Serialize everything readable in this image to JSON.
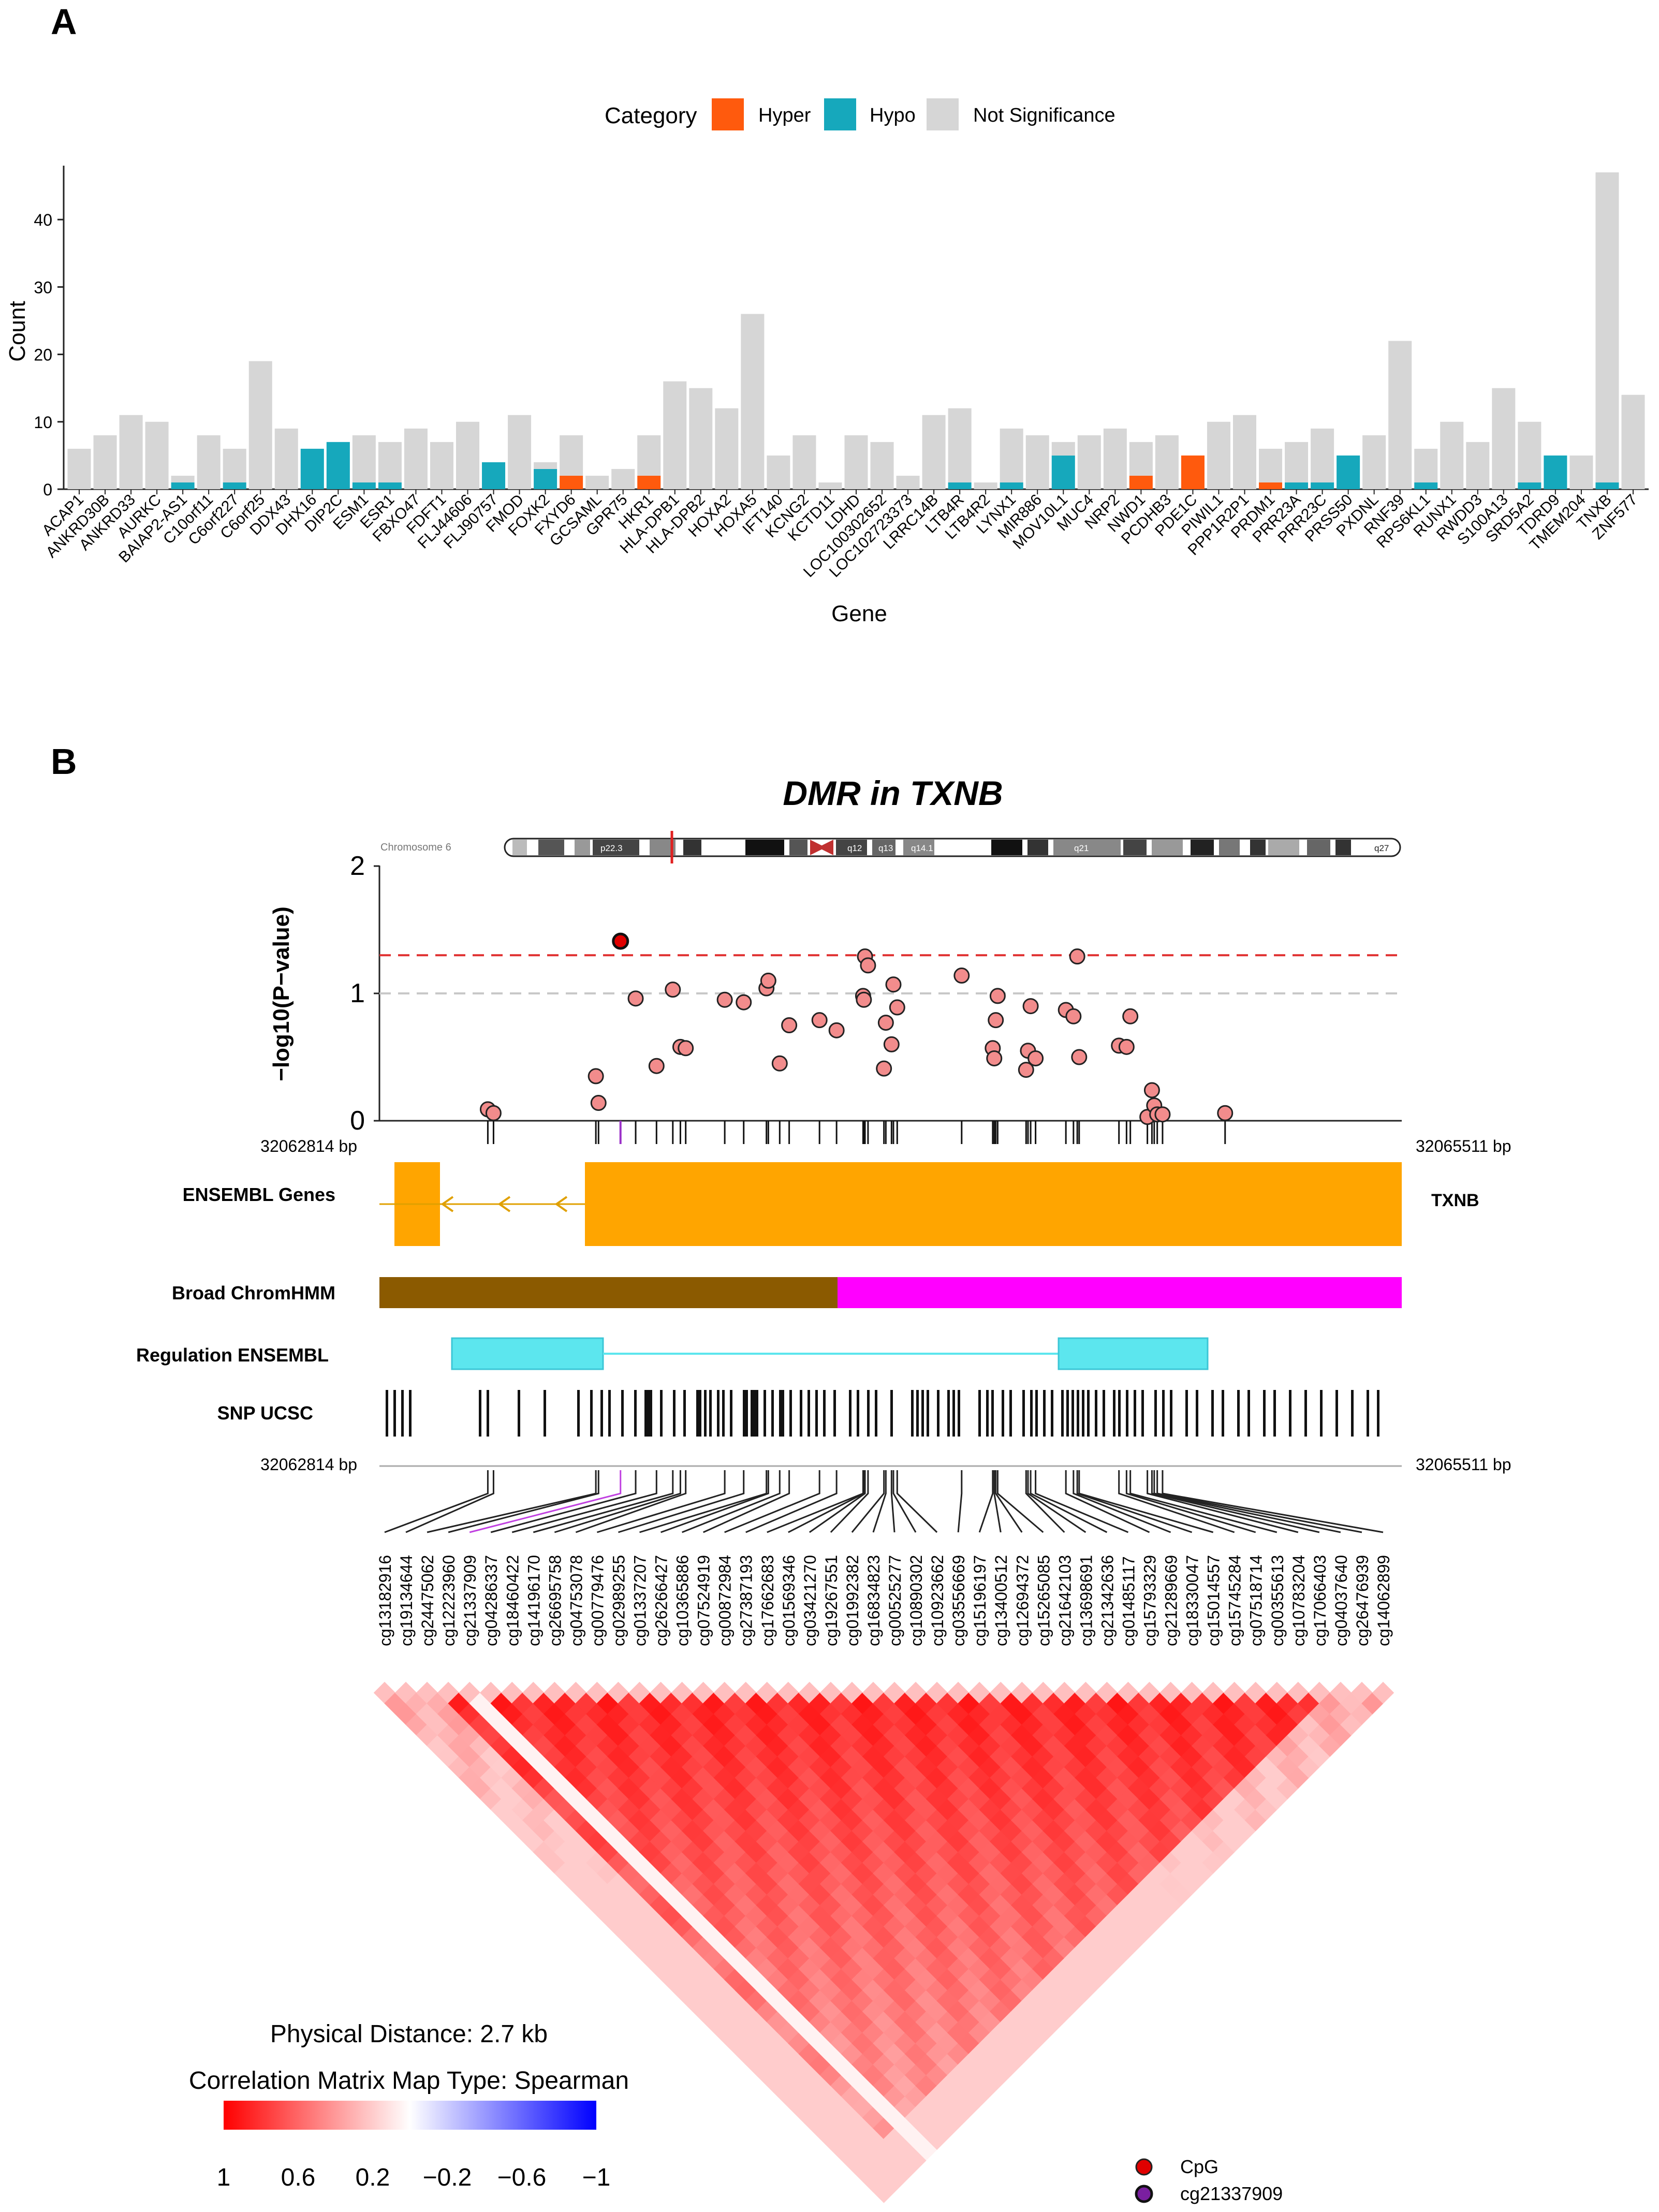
{
  "panelA": {
    "letter": "A",
    "legend": {
      "title": "Category",
      "entries": [
        {
          "label": "Hyper",
          "color": "#FF5A0D"
        },
        {
          "label": "Hypo",
          "color": "#16A8BC"
        },
        {
          "label": "Not Significance",
          "color": "#D6D6D6"
        }
      ]
    }
  },
  "panelB": {
    "letter": "B",
    "title": "DMR in TXNB",
    "chromosome_label": "Chromosome 6",
    "bands": [
      "p22.3",
      "q12",
      "q13",
      "q14.1",
      "q21",
      "q27"
    ],
    "ylabel": "−log10(P−value)",
    "yticks": [
      "0",
      "1",
      "2"
    ],
    "start_bp": "32062814 bp",
    "end_bp": "32065511 bp",
    "tracks": {
      "genes": "ENSEMBL Genes",
      "gene_name": "TXNB",
      "chromhmm": "Broad ChromHMM",
      "regulation": "Regulation ENSEMBL",
      "snp": "SNP UCSC"
    },
    "distance": "Physical Distance: 2.7 kb",
    "corr_title": "Correlation Matrix Map Type: Spearman",
    "corr_ticks": [
      "1",
      "0.6",
      "0.2",
      "−0.2",
      "−0.6",
      "−1"
    ],
    "point_legend": [
      {
        "label": "CpG",
        "color": "#E00000"
      },
      {
        "label": "cg21337909",
        "color": "#7A1FA0"
      }
    ]
  },
  "chart_data": [
    {
      "type": "bar",
      "stacked": true,
      "xlabel": "Gene",
      "ylabel": "Count",
      "ylim": [
        0,
        48
      ],
      "yticks": [
        0,
        10,
        20,
        30,
        40
      ],
      "categories": [
        "ACAP1",
        "ANKRD30B",
        "ANKRD33",
        "AURKC",
        "BAIAP2-AS1",
        "C10orf11",
        "C6orf227",
        "C6orf25",
        "DDX43",
        "DHX16",
        "DIP2C",
        "ESM1",
        "ESR1",
        "FBXO47",
        "FDFT1",
        "FLJ44606",
        "FLJ90757",
        "FMOD",
        "FOXK2",
        "FXYD6",
        "GCSAML",
        "GPR75",
        "HKR1",
        "HLA-DPB1",
        "HLA-DPB2",
        "HOXA2",
        "HOXA5",
        "IFT140",
        "KCNG2",
        "KCTD11",
        "LDHD",
        "LOC100302652",
        "LOC102723373",
        "LRRC14B",
        "LTB4R",
        "LTB4R2",
        "LYNX1",
        "MIR886",
        "MOV10L1",
        "MUC4",
        "NRP2",
        "NWD1",
        "PCDHB3",
        "PDE1C",
        "PIWIL1",
        "PPP1R2P1",
        "PRDM1",
        "PRR23A",
        "PRR23C",
        "PRSS50",
        "PXDNL",
        "RNF39",
        "RPS6KL1",
        "RUNX1",
        "RWDD3",
        "S100A13",
        "SRD5A2",
        "TDRD9",
        "TMEM204",
        "TNXB",
        "ZNF577"
      ],
      "series": [
        {
          "name": "Hyper",
          "values": [
            0,
            0,
            0,
            0,
            0,
            0,
            0,
            0,
            0,
            0,
            0,
            0,
            0,
            0,
            0,
            0,
            0,
            0,
            0,
            2,
            0,
            0,
            2,
            0,
            0,
            0,
            0,
            0,
            0,
            0,
            0,
            0,
            0,
            0,
            0,
            0,
            0,
            0,
            0,
            0,
            0,
            2,
            0,
            5,
            0,
            0,
            1,
            0,
            0,
            0,
            0,
            0,
            0,
            0,
            0,
            0,
            0,
            0,
            0,
            0,
            0
          ]
        },
        {
          "name": "Hypo",
          "values": [
            0,
            0,
            0,
            0,
            1,
            0,
            1,
            0,
            0,
            6,
            7,
            1,
            1,
            0,
            0,
            0,
            4,
            0,
            3,
            0,
            0,
            0,
            0,
            0,
            0,
            0,
            0,
            0,
            0,
            0,
            0,
            0,
            0,
            0,
            1,
            0,
            1,
            0,
            5,
            0,
            0,
            0,
            0,
            0,
            0,
            0,
            0,
            1,
            1,
            5,
            0,
            0,
            1,
            0,
            0,
            0,
            1,
            5,
            0,
            1,
            0
          ]
        },
        {
          "name": "Not Significance",
          "values": [
            6,
            8,
            11,
            10,
            1,
            8,
            5,
            19,
            9,
            0,
            0,
            7,
            6,
            9,
            7,
            10,
            0,
            11,
            1,
            6,
            2,
            3,
            6,
            16,
            15,
            12,
            26,
            5,
            8,
            1,
            8,
            7,
            2,
            11,
            11,
            1,
            8,
            8,
            2,
            8,
            9,
            5,
            8,
            0,
            10,
            11,
            5,
            6,
            8,
            0,
            8,
            22,
            5,
            10,
            7,
            15,
            9,
            0,
            5,
            46,
            14
          ]
        }
      ]
    },
    {
      "type": "scatter",
      "title": "DMR in TXNB",
      "ylabel": "−log10(P−value)",
      "ylim": [
        0,
        2
      ],
      "xlim": [
        32062814,
        32065511
      ],
      "thresholds": [
        {
          "value": 1.3,
          "color": "#E03030"
        },
        {
          "value": 1.0,
          "color": "#C8C8C8"
        }
      ],
      "highlight": {
        "id": "cg21337909",
        "pos": 32063450,
        "value": 1.41
      },
      "points": [
        {
          "pos": 32063100,
          "value": 0.09
        },
        {
          "pos": 32063115,
          "value": 0.06
        },
        {
          "pos": 32063385,
          "value": 0.35
        },
        {
          "pos": 32063392,
          "value": 0.14
        },
        {
          "pos": 32063490,
          "value": 0.96
        },
        {
          "pos": 32063545,
          "value": 0.43
        },
        {
          "pos": 32063588,
          "value": 1.03
        },
        {
          "pos": 32063608,
          "value": 0.58
        },
        {
          "pos": 32063622,
          "value": 0.57
        },
        {
          "pos": 32063725,
          "value": 0.95
        },
        {
          "pos": 32063775,
          "value": 0.93
        },
        {
          "pos": 32063835,
          "value": 1.04
        },
        {
          "pos": 32063840,
          "value": 1.1
        },
        {
          "pos": 32063870,
          "value": 0.45
        },
        {
          "pos": 32063895,
          "value": 0.75
        },
        {
          "pos": 32063975,
          "value": 0.79
        },
        {
          "pos": 32064020,
          "value": 0.71
        },
        {
          "pos": 32064090,
          "value": 0.98
        },
        {
          "pos": 32064092,
          "value": 0.95
        },
        {
          "pos": 32064095,
          "value": 1.29
        },
        {
          "pos": 32064103,
          "value": 1.22
        },
        {
          "pos": 32064145,
          "value": 0.41
        },
        {
          "pos": 32064150,
          "value": 0.77
        },
        {
          "pos": 32064165,
          "value": 0.6
        },
        {
          "pos": 32064170,
          "value": 1.07
        },
        {
          "pos": 32064180,
          "value": 0.89
        },
        {
          "pos": 32064350,
          "value": 1.14
        },
        {
          "pos": 32064432,
          "value": 0.57
        },
        {
          "pos": 32064436,
          "value": 0.49
        },
        {
          "pos": 32064440,
          "value": 0.79
        },
        {
          "pos": 32064445,
          "value": 0.98
        },
        {
          "pos": 32064520,
          "value": 0.4
        },
        {
          "pos": 32064525,
          "value": 0.55
        },
        {
          "pos": 32064532,
          "value": 0.9
        },
        {
          "pos": 32064545,
          "value": 0.49
        },
        {
          "pos": 32064625,
          "value": 0.87
        },
        {
          "pos": 32064645,
          "value": 0.82
        },
        {
          "pos": 32064655,
          "value": 1.29
        },
        {
          "pos": 32064660,
          "value": 0.5
        },
        {
          "pos": 32064765,
          "value": 0.59
        },
        {
          "pos": 32064785,
          "value": 0.58
        },
        {
          "pos": 32064795,
          "value": 0.82
        },
        {
          "pos": 32064840,
          "value": 0.03
        },
        {
          "pos": 32064852,
          "value": 0.24
        },
        {
          "pos": 32064858,
          "value": 0.12
        },
        {
          "pos": 32064866,
          "value": 0.05
        },
        {
          "pos": 32064880,
          "value": 0.05
        },
        {
          "pos": 32065045,
          "value": 0.06
        }
      ]
    },
    {
      "type": "heatmap",
      "shape": "triangle",
      "colorscale": {
        "min": -1,
        "max": 1,
        "colors": [
          "#FF0000",
          "#FFFFFF",
          "#0000FF"
        ]
      },
      "labels": [
        "cg13182916",
        "cg19134644",
        "cg24475062",
        "cg12223960",
        "cg21337909",
        "cg04286337",
        "cg18460422",
        "cg14196170",
        "cg26695758",
        "cg04753078",
        "cg00779476",
        "cg02989255",
        "cg01337207",
        "cg26266427",
        "cg10365886",
        "cg07524919",
        "cg00872984",
        "cg27387193",
        "cg17662683",
        "cg01569346",
        "cg03421270",
        "cg19267551",
        "cg01992382",
        "cg16834823",
        "cg00525277",
        "cg10890302",
        "cg10923662",
        "cg03556669",
        "cg15196197",
        "cg13400512",
        "cg12694372",
        "cg15265085",
        "cg21642103",
        "cg13698691",
        "cg21342636",
        "cg01485117",
        "cg15793329",
        "cg21289669",
        "cg18330047",
        "cg15014557",
        "cg15745284",
        "cg07518714",
        "cg00355613",
        "cg10783204",
        "cg17066403",
        "cg04037640",
        "cg26476939",
        "cg14062899"
      ]
    }
  ]
}
